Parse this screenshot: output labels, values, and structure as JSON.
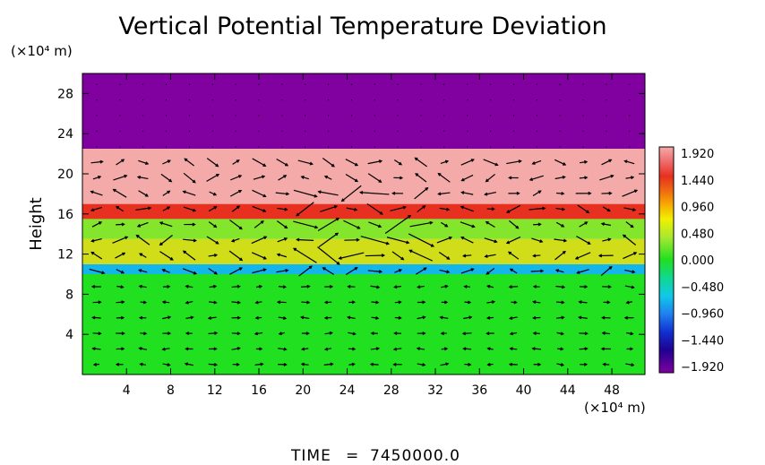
{
  "chart_data": {
    "type": "heatmap",
    "title": "Vertical Potential Temperature Deviation",
    "ylabel": "Height",
    "y_unit": "(×10⁴ m)",
    "x_unit": "(×10⁴ m)",
    "xlim": [
      0,
      51
    ],
    "ylim": [
      0,
      30
    ],
    "x_ticks": [
      4,
      8,
      12,
      16,
      20,
      24,
      28,
      32,
      36,
      40,
      44,
      48
    ],
    "y_ticks": [
      4,
      8,
      12,
      16,
      20,
      24,
      28
    ],
    "colorbar": {
      "labels": [
        "1.920",
        "1.440",
        "0.960",
        "0.480",
        "0.000",
        "−0.480",
        "−0.960",
        "−1.440",
        "−1.920"
      ],
      "min": -1.92,
      "max": 1.92
    },
    "layers": [
      {
        "from": 0,
        "to": 10,
        "value": 0.0
      },
      {
        "from": 10,
        "to": 11,
        "value": -0.6
      },
      {
        "from": 11,
        "to": 13.5,
        "value": 0.72
      },
      {
        "from": 13.5,
        "to": 15.5,
        "value": 0.35
      },
      {
        "from": 15.5,
        "to": 17,
        "value": 1.44
      },
      {
        "from": 17,
        "to": 22.5,
        "value": 1.92
      },
      {
        "from": 22.5,
        "to": 30,
        "value": -1.92
      }
    ],
    "arrows": "wind vectors overlaid on grid"
  },
  "footer": {
    "time_label": "TIME",
    "time_eq": "=",
    "time_value": "7450000.0"
  }
}
